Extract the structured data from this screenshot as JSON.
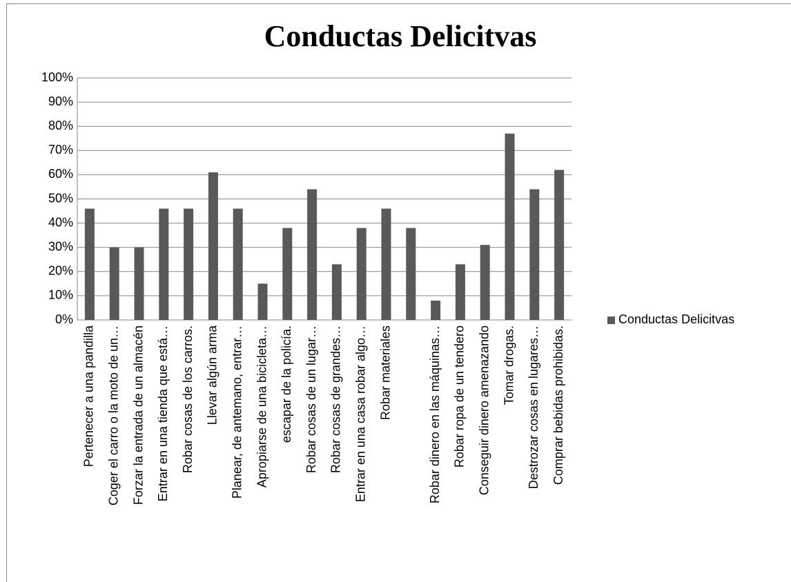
{
  "chart_data": {
    "type": "bar",
    "title": "Conductas Delicitvas",
    "categories": [
      "Pertenecer a una pandilla",
      "Coger el carro o la moto de un…",
      "Forzar la entrada de un almacén",
      "Entrar en una tienda que está…",
      "Robar cosas de los carros.",
      "Llevar algún arma",
      "Planear, de antemano, entrar…",
      "Apropiarse de una bicicleta…",
      "escapar de la policía.",
      "Robar cosas de un lugar…",
      "Robar cosas de grandes…",
      "Entrar en una casa robar algo…",
      "Robar materiales",
      null,
      "Robar dinero en las máquinas…",
      "Robar ropa de un tendero",
      "Conseguir dinero amenazando",
      "Tomar drogas.",
      "Destrozar  cosas en lugares…",
      "Comprar bebidas prohibidas."
    ],
    "series": [
      {
        "name": "Conductas Delicitvas",
        "color": "#595959",
        "values": [
          46,
          30,
          30,
          46,
          46,
          61,
          46,
          15,
          38,
          54,
          23,
          38,
          46,
          38,
          8,
          23,
          31,
          77,
          54,
          62
        ]
      }
    ],
    "ylim": [
      0,
      100
    ],
    "yticks": [
      {
        "value": 0,
        "label": "0%"
      },
      {
        "value": 10,
        "label": "10%"
      },
      {
        "value": 20,
        "label": "20%"
      },
      {
        "value": 30,
        "label": "30%"
      },
      {
        "value": 40,
        "label": "40%"
      },
      {
        "value": 50,
        "label": "50%"
      },
      {
        "value": 60,
        "label": "60%"
      },
      {
        "value": 70,
        "label": "70%"
      },
      {
        "value": 80,
        "label": "80%"
      },
      {
        "value": 90,
        "label": "90%"
      },
      {
        "value": 100,
        "label": "100%"
      }
    ],
    "grid": true,
    "legend": "right"
  }
}
